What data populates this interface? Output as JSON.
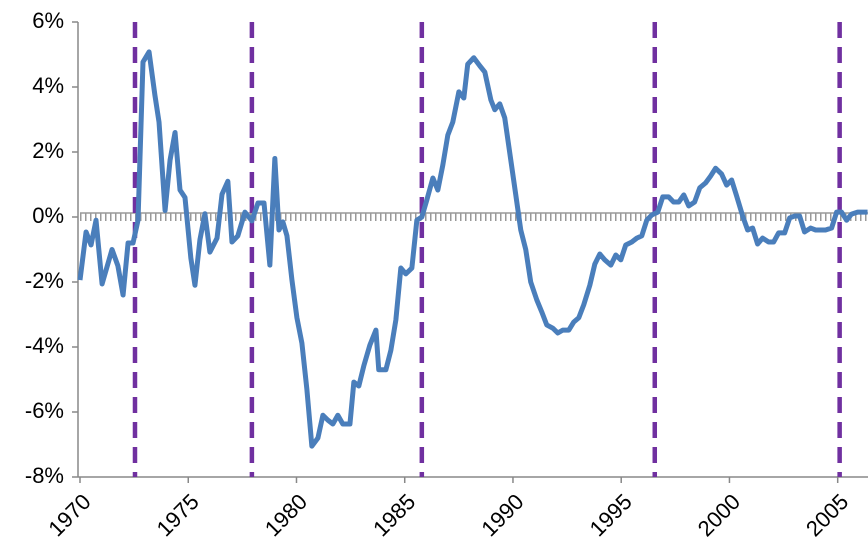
{
  "chart_data": {
    "type": "line",
    "x": [
      1970.0,
      1970.28,
      1970.51,
      1970.74,
      1971.02,
      1971.48,
      1971.75,
      1971.99,
      1972.22,
      1972.45,
      1972.68,
      1972.91,
      1973.19,
      1973.46,
      1973.65,
      1973.93,
      1974.16,
      1974.39,
      1974.62,
      1974.85,
      1975.12,
      1975.31,
      1975.54,
      1975.77,
      1976.0,
      1976.33,
      1976.56,
      1976.83,
      1977.02,
      1977.29,
      1977.62,
      1977.94,
      1978.22,
      1978.5,
      1978.77,
      1979.0,
      1979.19,
      1979.37,
      1979.56,
      1979.79,
      1980.02,
      1980.25,
      1980.48,
      1980.71,
      1980.99,
      1981.22,
      1981.45,
      1981.68,
      1981.91,
      1982.14,
      1982.47,
      1982.65,
      1982.88,
      1983.11,
      1983.39,
      1983.67,
      1983.8,
      1984.13,
      1984.36,
      1984.59,
      1984.82,
      1985.05,
      1985.33,
      1985.56,
      1985.79,
      1986.02,
      1986.3,
      1986.53,
      1986.76,
      1986.99,
      1987.22,
      1987.5,
      1987.73,
      1987.91,
      1988.19,
      1988.47,
      1988.7,
      1988.98,
      1989.16,
      1989.39,
      1989.62,
      1989.9,
      1990.13,
      1990.36,
      1990.59,
      1990.82,
      1991.1,
      1991.33,
      1991.56,
      1991.84,
      1992.07,
      1992.3,
      1992.58,
      1992.81,
      1993.04,
      1993.27,
      1993.55,
      1993.78,
      1994.01,
      1994.24,
      1994.52,
      1994.75,
      1994.98,
      1995.21,
      1995.49,
      1995.72,
      1995.95,
      1996.18,
      1996.41,
      1996.69,
      1996.92,
      1997.19,
      1997.42,
      1997.66,
      1997.89,
      1998.12,
      1998.39,
      1998.63,
      1998.9,
      1999.13,
      1999.36,
      1999.64,
      1999.87,
      2000.1,
      2000.33,
      2000.61,
      2000.84,
      2001.07,
      2001.3,
      2001.53,
      2001.81,
      2002.04,
      2002.27,
      2002.55,
      2002.78,
      2003.01,
      2003.24,
      2003.47,
      2003.75,
      2003.98,
      2004.21,
      2004.44,
      2004.72,
      2004.95,
      2005.18,
      2005.41,
      2005.64,
      2005.92,
      2006.15,
      2006.38
    ],
    "series": [
      {
        "color": "#4a7ebb",
        "values": [
          -1.94,
          -0.46,
          -0.86,
          -0.1,
          -2.06,
          -1.0,
          -1.5,
          -2.4,
          -0.8,
          -0.8,
          -0.1,
          4.77,
          5.08,
          3.75,
          2.92,
          0.2,
          1.75,
          2.6,
          0.83,
          0.6,
          -1.26,
          -2.1,
          -0.7,
          0.1,
          -1.08,
          -0.65,
          0.7,
          1.1,
          -0.77,
          -0.58,
          0.15,
          -0.12,
          0.43,
          0.43,
          -1.48,
          1.8,
          -0.4,
          -0.15,
          -0.58,
          -1.94,
          -3.1,
          -3.88,
          -5.3,
          -7.05,
          -6.8,
          -6.1,
          -6.25,
          -6.37,
          -6.1,
          -6.37,
          -6.37,
          -5.08,
          -5.2,
          -4.58,
          -3.94,
          -3.48,
          -4.7,
          -4.7,
          -4.1,
          -3.17,
          -1.57,
          -1.75,
          -1.57,
          -0.1,
          0,
          0.52,
          1.2,
          0.83,
          1.6,
          2.52,
          2.92,
          3.85,
          3.66,
          4.7,
          4.9,
          4.65,
          4.46,
          3.6,
          3.3,
          3.48,
          3.05,
          1.75,
          0.68,
          -0.4,
          -1.0,
          -2.0,
          -2.55,
          -2.92,
          -3.32,
          -3.42,
          -3.57,
          -3.48,
          -3.48,
          -3.23,
          -3.1,
          -2.7,
          -2.1,
          -1.45,
          -1.14,
          -1.32,
          -1.48,
          -1.17,
          -1.32,
          -0.86,
          -0.77,
          -0.65,
          -0.58,
          -0.1,
          0.06,
          0.15,
          0.62,
          0.62,
          0.46,
          0.46,
          0.68,
          0.34,
          0.46,
          0.9,
          1.05,
          1.26,
          1.5,
          1.32,
          0.98,
          1.14,
          0.65,
          0.03,
          -0.4,
          -0.34,
          -0.83,
          -0.65,
          -0.77,
          -0.77,
          -0.49,
          -0.49,
          -0.03,
          0.03,
          0.03,
          -0.46,
          -0.34,
          -0.4,
          -0.4,
          -0.4,
          -0.34,
          0.15,
          0.15,
          -0.1,
          0.09,
          0.15,
          0.15,
          0.15
        ]
      }
    ],
    "vertical_lines": {
      "x": [
        1972.54,
        1977.94,
        1985.79,
        1996.55,
        2005.09
      ],
      "color": "#7030a0"
    },
    "xlim": [
      1970,
      2006.4
    ],
    "xticks": [
      1970,
      1975,
      1980,
      1985,
      1990,
      1995,
      2000,
      2005
    ],
    "ylim": [
      -8,
      6
    ],
    "yticks": [
      {
        "value": -8,
        "label": "-8%"
      },
      {
        "value": -6,
        "label": "-6%"
      },
      {
        "value": -4,
        "label": "-4%"
      },
      {
        "value": -2,
        "label": "-2%"
      },
      {
        "value": 0,
        "label": "0%"
      },
      {
        "value": 2,
        "label": "2%"
      },
      {
        "value": 4,
        "label": "4%"
      },
      {
        "value": 6,
        "label": "6%"
      }
    ],
    "grid": false
  }
}
